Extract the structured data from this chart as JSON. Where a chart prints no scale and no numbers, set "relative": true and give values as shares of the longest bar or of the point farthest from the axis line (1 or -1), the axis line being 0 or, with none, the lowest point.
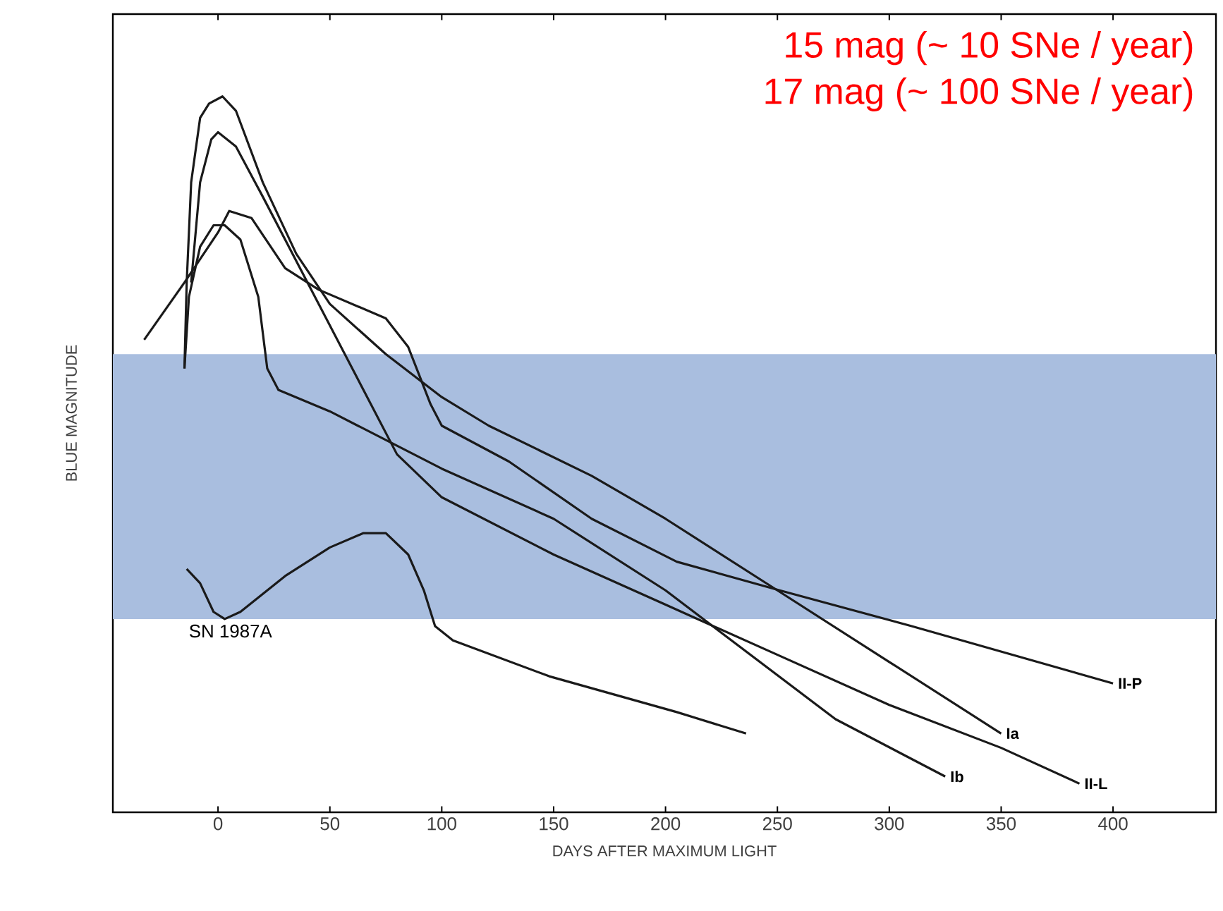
{
  "chart_data": {
    "type": "line",
    "relative": true,
    "xlabel": "DAYS AFTER MAXIMUM LIGHT",
    "ylabel": "BLUE MAGNITUDE",
    "xlim": [
      -47,
      446
    ],
    "xticks": [
      0,
      50,
      100,
      150,
      200,
      250,
      300,
      350,
      400
    ],
    "grid": false,
    "marker": "none",
    "line_style": "solid",
    "annotations": [
      "15 mag (~ 10 SNe / year)",
      "17 mag (~ 100 SNe / year)"
    ],
    "bands": [
      {
        "axis": "y",
        "from": 0.27,
        "to": 0.64,
        "color": "#a9bedf"
      }
    ],
    "series": [
      {
        "name": "Ia",
        "color": "#1a1a1a",
        "x": [
          -15,
          -14,
          -12,
          -8,
          -4,
          2,
          8,
          20,
          35,
          50,
          75,
          100,
          121,
          167,
          200,
          250,
          300,
          350
        ],
        "values": [
          0.62,
          0.74,
          0.88,
          0.97,
          0.99,
          1.0,
          0.98,
          0.88,
          0.78,
          0.71,
          0.64,
          0.58,
          0.54,
          0.47,
          0.41,
          0.31,
          0.21,
          0.11
        ]
      },
      {
        "name": "II-L",
        "color": "#1a1a1a",
        "x": [
          -12,
          -8,
          -3,
          0,
          8,
          20,
          40,
          60,
          80,
          100,
          150,
          200,
          250,
          300,
          350,
          385
        ],
        "values": [
          0.74,
          0.88,
          0.94,
          0.95,
          0.93,
          0.86,
          0.74,
          0.62,
          0.5,
          0.44,
          0.36,
          0.29,
          0.22,
          0.15,
          0.09,
          0.04
        ]
      },
      {
        "name": "II-P",
        "color": "#1a1a1a",
        "x": [
          -33,
          -15,
          0,
          5,
          15,
          30,
          45,
          60,
          75,
          85,
          90,
          95,
          100,
          130,
          167,
          205,
          251,
          310,
          400
        ],
        "values": [
          0.66,
          0.74,
          0.81,
          0.84,
          0.83,
          0.76,
          0.73,
          0.71,
          0.69,
          0.65,
          0.61,
          0.57,
          0.54,
          0.49,
          0.41,
          0.35,
          0.31,
          0.26,
          0.18
        ]
      },
      {
        "name": "Ib",
        "color": "#1a1a1a",
        "x": [
          -15,
          -13,
          -8,
          -2,
          3,
          10,
          18,
          22,
          27,
          50,
          100,
          150,
          200,
          276,
          325
        ],
        "values": [
          0.62,
          0.72,
          0.79,
          0.82,
          0.82,
          0.8,
          0.72,
          0.62,
          0.59,
          0.56,
          0.48,
          0.41,
          0.31,
          0.13,
          0.05
        ]
      },
      {
        "name": "SN 1987A",
        "color": "#1a1a1a",
        "x": [
          -14,
          -8,
          -2,
          3,
          10,
          30,
          50,
          65,
          75,
          85,
          92,
          97,
          105,
          148,
          205,
          236
        ],
        "values": [
          0.34,
          0.32,
          0.28,
          0.27,
          0.28,
          0.33,
          0.37,
          0.39,
          0.39,
          0.36,
          0.31,
          0.26,
          0.24,
          0.19,
          0.14,
          0.11
        ]
      }
    ]
  }
}
